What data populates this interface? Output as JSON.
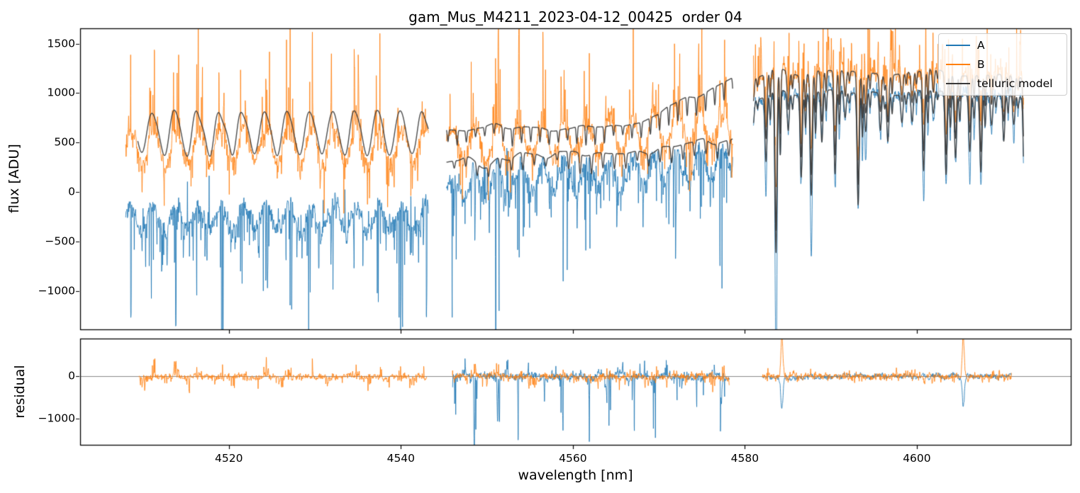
{
  "chart_data": {
    "type": "line",
    "title": "gam_Mus_M4211_2023-04-12_00425  order 04",
    "xlabel": "wavelength [nm]",
    "grid": false,
    "panels": [
      {
        "id": "flux",
        "ylabel": "flux [ADU]",
        "xlim": [
          4502.7,
          4617.9
        ],
        "ylim": [
          -1390,
          1655
        ],
        "xticks": [
          4520,
          4540,
          4560,
          4580,
          4600
        ],
        "yticks": [
          1500,
          1000,
          500,
          0,
          -500,
          -1000
        ]
      },
      {
        "id": "residual",
        "ylabel": "residual",
        "xlim": [
          4502.7,
          4617.9
        ],
        "ylim": [
          -1610,
          890
        ],
        "xticks": [
          4520,
          4540,
          4560,
          4580,
          4600
        ],
        "yticks": [
          0,
          -1000
        ],
        "zero_line": true,
        "zero_line_color": "#8a8a8a"
      }
    ],
    "legend": {
      "position": "upper right",
      "entries": [
        {
          "label": "A",
          "color": "#1f77b4"
        },
        {
          "label": "B",
          "color": "#ff7f0e"
        },
        {
          "label": "telluric model",
          "color": "#3a3a3a"
        }
      ]
    },
    "segments": [
      {
        "kind": "periodic",
        "x_range": [
          4508.0,
          4543.2
        ],
        "oscillation_period_nm": 2.62,
        "B": {
          "baseline": 470,
          "osc_amp": 170,
          "noise": 135,
          "peak_max": 1650,
          "trough_min": -100
        },
        "A": {
          "baseline": -260,
          "osc_amp": 130,
          "noise": 140,
          "dip_min": -1380,
          "top_max": 260
        },
        "telluric": {
          "x_range": [
            4509.4,
            4543.2
          ],
          "mean": 605,
          "amp": 235,
          "min": 375,
          "max": 875
        },
        "residual": {
          "x_range": [
            4509.5,
            4543.0
          ],
          "B": {
            "noise": 115,
            "burst": 500
          },
          "A": null
        }
      },
      {
        "kind": "transition",
        "x_range": [
          4545.3,
          4578.6
        ],
        "oscillation_period_nm": 2.62,
        "B": {
          "baseline_start": 480,
          "baseline_end": 680,
          "osc_amp": 160,
          "noise": 130,
          "peak_max": 1650,
          "trough_min": 120
        },
        "A": {
          "baseline_start": 40,
          "baseline_end": 300,
          "osc_amp": 150,
          "noise": 150,
          "dip_min": -1420,
          "top_max": 660
        },
        "telluric_upper": {
          "start": 660,
          "end": 1150,
          "dip_depth_range": [
            60,
            210
          ]
        },
        "telluric_lower": {
          "start": 335,
          "min": 215,
          "end": 450,
          "dip_depth_range": [
            70,
            220
          ]
        },
        "residual": {
          "x_range": [
            4546.0,
            4578.2
          ],
          "B": {
            "noise": 125,
            "burst": 450
          },
          "A": {
            "noise": 140,
            "dip_min": -1600,
            "top_max": 380
          }
        }
      },
      {
        "kind": "absorption",
        "x_range": [
          4581.0,
          4612.4
        ],
        "line_spacing_nm": 1.304,
        "line_width_nm": 0.17,
        "deep_lines": [
          4583.6,
          4605.2
        ],
        "telluric_upper": {
          "continuum": 1195,
          "dip_min_regular": 100,
          "dip_min_deep": -1290
        },
        "telluric_lower": {
          "continuum": 983,
          "offset_below_upper": 212
        },
        "B": {
          "noise": 115,
          "peak_max": 1650,
          "line_dip_min": 90
        },
        "A": {
          "noise": 105,
          "dip_min": -1350
        },
        "residual": {
          "x_range": [
            4582.0,
            4611.0
          ],
          "noise": 105,
          "B_spikes": [
            {
              "x": 4584.3,
              "amp": 950
            },
            {
              "x": 4605.4,
              "amp": 900
            }
          ],
          "A_dips": [
            {
              "x": 4584.3,
              "amp": -750
            },
            {
              "x": 4605.4,
              "amp": -700
            }
          ]
        }
      }
    ]
  }
}
